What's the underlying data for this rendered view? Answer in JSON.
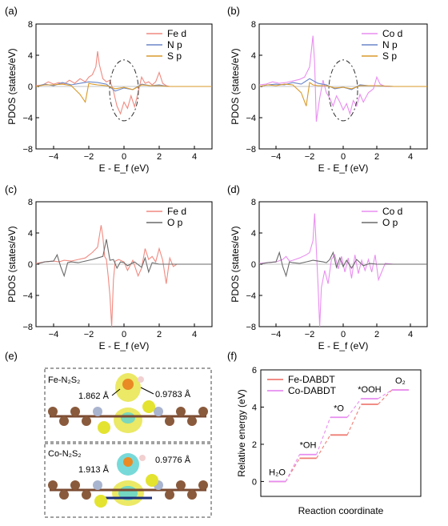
{
  "colors": {
    "fe_d": "#f08a80",
    "co_d": "#e98ef0",
    "n_p": "#6b86c9",
    "s_p": "#d99a2a",
    "o_p": "#6a6a6a",
    "fe_line": "#ef7d74",
    "co_line": "#e78df0"
  },
  "panel_e": {
    "label": "(e)",
    "top_title": "Fe-N₂S₂",
    "top_bond1": "1.862 Å",
    "top_bond2": "0.9783 Å",
    "bottom_title": "Co-N₂S₂",
    "bottom_bond1": "1.913 Å",
    "bottom_bond2": "0.9776 Å"
  },
  "chart_data": [
    {
      "type": "line",
      "panel": "(a)",
      "xlabel": "E - E_f (eV)",
      "ylabel": "PDOS (states/eV)",
      "xlim": [
        -5,
        5
      ],
      "ylim": [
        -8,
        8
      ],
      "xticks": [
        -4,
        -2,
        0,
        2,
        4
      ],
      "yticks": [
        8,
        4,
        0,
        -4,
        -8
      ],
      "legend": "top-right",
      "annotation": "dashed ellipse around E - E_f = 0",
      "series": [
        {
          "name": "Fe d",
          "color": "#f08a80",
          "x": [
            -5,
            -4.6,
            -4.3,
            -4,
            -3.7,
            -3.4,
            -3.1,
            -2.8,
            -2.5,
            -2.2,
            -2,
            -1.8,
            -1.6,
            -1.5,
            -1.4,
            -1.2,
            -1,
            -0.8,
            -0.6,
            -0.4,
            -0.2,
            0,
            0.2,
            0.4,
            0.6,
            0.8,
            1,
            1.2,
            1.4,
            1.6,
            1.8,
            2,
            2.2,
            2.4,
            2.6,
            3,
            3.5,
            4,
            4.5,
            5
          ],
          "y": [
            0.1,
            0.2,
            0.6,
            0.3,
            0.5,
            0.3,
            0.8,
            0.4,
            1.0,
            0.6,
            1.2,
            1.5,
            2.5,
            4.5,
            2.8,
            1.0,
            0.6,
            0.8,
            -0.6,
            -2.5,
            -3.5,
            -2.0,
            -2.8,
            -1.2,
            -2.6,
            -0.8,
            1.2,
            0.4,
            0.6,
            0.2,
            0.6,
            1.8,
            0.4,
            0.1,
            0,
            0,
            0,
            0,
            0,
            0
          ]
        },
        {
          "name": "N p",
          "color": "#6b86c9",
          "x": [
            -5,
            -4.5,
            -4,
            -3.5,
            -3,
            -2.5,
            -2,
            -1.5,
            -1,
            -0.5,
            0,
            0.5,
            1,
            1.5,
            2,
            2.5,
            3,
            4,
            5
          ],
          "y": [
            0,
            0.3,
            0.1,
            0.5,
            0.2,
            0.4,
            0.6,
            0.5,
            0.3,
            -0.6,
            -0.2,
            -0.4,
            0.3,
            0.1,
            0.2,
            0,
            0,
            0,
            0
          ]
        },
        {
          "name": "S p",
          "color": "#d99a2a",
          "x": [
            -5,
            -4.5,
            -4,
            -3.5,
            -3,
            -2.5,
            -2.2,
            -2,
            -1.8,
            -1.5,
            -1,
            -0.5,
            0,
            0.5,
            1,
            1.5,
            2,
            2.5,
            3,
            4,
            5
          ],
          "y": [
            0,
            0.2,
            0.2,
            0.3,
            0.1,
            -1.0,
            -2.0,
            0.4,
            0.3,
            0.2,
            0.1,
            -0.3,
            -0.1,
            -0.4,
            0.2,
            0.1,
            0.1,
            0,
            0,
            0,
            0
          ]
        }
      ]
    },
    {
      "type": "line",
      "panel": "(b)",
      "xlabel": "E - E_f (eV)",
      "ylabel": "PDOS (states/eV)",
      "xlim": [
        -5,
        5
      ],
      "ylim": [
        -8,
        8
      ],
      "xticks": [
        -4,
        -2,
        0,
        2,
        4
      ],
      "yticks": [
        8,
        4,
        0,
        -4,
        -8
      ],
      "legend": "top-right",
      "annotation": "dashed ellipse around E - E_f = 0",
      "series": [
        {
          "name": "Co d",
          "color": "#e98ef0",
          "x": [
            -5,
            -4.6,
            -4.2,
            -3.8,
            -3.4,
            -3,
            -2.6,
            -2.3,
            -2,
            -1.9,
            -1.8,
            -1.7,
            -1.6,
            -1.4,
            -1.2,
            -1,
            -0.8,
            -0.6,
            -0.4,
            -0.2,
            0,
            0.2,
            0.4,
            0.6,
            0.8,
            1,
            1.2,
            1.5,
            1.8,
            2,
            2.2,
            2.5,
            3,
            3.5,
            4,
            4.5,
            5
          ],
          "y": [
            0.2,
            0.3,
            0.6,
            0.4,
            0.5,
            0.7,
            0.9,
            1.2,
            2.5,
            4.5,
            6.5,
            3.0,
            -4.5,
            -1.5,
            0.8,
            -0.8,
            -1.5,
            -2.5,
            -1.2,
            -2.0,
            -3.0,
            -2.2,
            -3.5,
            -1.8,
            -2.5,
            -1.0,
            -2.0,
            -0.8,
            -0.3,
            1.2,
            0.3,
            0,
            0,
            0,
            0,
            0,
            0
          ]
        },
        {
          "name": "N p",
          "color": "#6b86c9",
          "x": [
            -5,
            -4.5,
            -4,
            -3.5,
            -3,
            -2.5,
            -2,
            -1.5,
            -1,
            -0.5,
            0,
            0.5,
            1,
            1.5,
            2,
            3,
            4,
            5
          ],
          "y": [
            0,
            0.2,
            0.3,
            0.2,
            0.5,
            0.3,
            1.0,
            0.4,
            0.2,
            -0.3,
            -0.1,
            -0.4,
            0.2,
            0.1,
            0.1,
            0,
            0,
            0
          ]
        },
        {
          "name": "S p",
          "color": "#d99a2a",
          "x": [
            -5,
            -4.5,
            -4,
            -3.5,
            -3,
            -2.5,
            -2.2,
            -2,
            -1.8,
            -1.5,
            -1,
            -0.5,
            0,
            0.5,
            1,
            1.5,
            2,
            3,
            4,
            5
          ],
          "y": [
            0,
            0.2,
            0.1,
            0.3,
            0.2,
            -0.8,
            -2.5,
            0.5,
            0.2,
            0.1,
            0.1,
            -0.2,
            -0.1,
            -0.3,
            0.1,
            0.1,
            0.1,
            0,
            0,
            0
          ]
        }
      ]
    },
    {
      "type": "line",
      "panel": "(c)",
      "xlabel": "E - E_f (eV)",
      "ylabel": "PDOS (states/eV)",
      "xlim": [
        -5,
        5
      ],
      "ylim": [
        -8,
        8
      ],
      "xticks": [
        -4,
        -2,
        0,
        2,
        4
      ],
      "yticks": [
        8,
        4,
        0,
        -4,
        -8
      ],
      "legend": "top-right",
      "series": [
        {
          "name": "Fe d",
          "color": "#f08a80",
          "x": [
            -5,
            -4.5,
            -4,
            -3.7,
            -3.4,
            -3,
            -2.6,
            -2.2,
            -1.8,
            -1.5,
            -1.3,
            -1.2,
            -1.1,
            -1,
            -0.9,
            -0.8,
            -0.7,
            -0.6,
            -0.5,
            -0.3,
            0,
            0.2,
            0.5,
            0.8,
            1,
            1.2,
            1.4,
            1.6,
            1.8,
            2,
            2.2,
            2.4,
            2.6,
            2.8,
            3,
            3.5,
            4,
            5
          ],
          "y": [
            0.1,
            0.3,
            0.4,
            0.3,
            0.5,
            0.4,
            0.6,
            0.8,
            1.5,
            2.2,
            5.0,
            3.5,
            1.0,
            0.6,
            -1.5,
            -4.0,
            -8.0,
            -2.0,
            0.4,
            0.6,
            0.3,
            -0.8,
            0.5,
            -1.5,
            -0.5,
            2.0,
            0.6,
            1.0,
            0.3,
            2.0,
            0.5,
            -2.5,
            0.8,
            -0.3,
            0,
            0,
            0,
            0
          ]
        },
        {
          "name": "O p",
          "color": "#6a6a6a",
          "x": [
            -5,
            -4.5,
            -4,
            -3.8,
            -3.6,
            -3.4,
            -3.2,
            -3,
            -2.6,
            -2.2,
            -1.8,
            -1.5,
            -1.2,
            -1,
            -0.8,
            -0.6,
            -0.4,
            -0.2,
            0,
            0.2,
            0.6,
            1,
            1.2,
            1.4,
            1.6,
            2,
            2.5,
            3,
            4,
            5
          ],
          "y": [
            0,
            0.3,
            0.4,
            1.2,
            -0.3,
            -1.5,
            0.2,
            0.3,
            0.2,
            0.4,
            0.6,
            0.8,
            1.0,
            3.2,
            0.5,
            0.6,
            -0.5,
            0.3,
            0.2,
            -0.2,
            0.3,
            -0.4,
            0.8,
            -1.0,
            0.2,
            0,
            0,
            0,
            0,
            0
          ]
        }
      ]
    },
    {
      "type": "line",
      "panel": "(d)",
      "xlabel": "E - E_f (eV)",
      "ylabel": "PDOS (states/eV)",
      "xlim": [
        -5,
        5
      ],
      "ylim": [
        -8,
        8
      ],
      "xticks": [
        -4,
        -2,
        0,
        2,
        4
      ],
      "yticks": [
        8,
        4,
        0,
        -4,
        -8
      ],
      "legend": "top-right",
      "series": [
        {
          "name": "Co d",
          "color": "#e98ef0",
          "x": [
            -5,
            -4.5,
            -4,
            -3.6,
            -3.4,
            -3.2,
            -3,
            -2.6,
            -2.2,
            -2,
            -1.8,
            -1.7,
            -1.6,
            -1.5,
            -1.4,
            -1.3,
            -1.1,
            -0.9,
            -0.7,
            -0.5,
            -0.3,
            -0.1,
            0.1,
            0.3,
            0.5,
            0.7,
            0.9,
            1.1,
            1.3,
            1.5,
            1.7,
            1.9,
            2.1,
            2.5,
            3,
            4,
            5
          ],
          "y": [
            0.1,
            0.2,
            0.3,
            0.6,
            1.0,
            0.4,
            0.5,
            0.8,
            1.2,
            1.5,
            3.0,
            6.5,
            2.0,
            -2.5,
            -8.0,
            -3.0,
            -0.8,
            -2.5,
            0.6,
            1.2,
            -0.6,
            1.0,
            -1.0,
            0.8,
            -1.8,
            1.2,
            -1.2,
            0.5,
            -0.8,
            0.6,
            -1.0,
            1.2,
            -2.0,
            0.1,
            0,
            0,
            0
          ]
        },
        {
          "name": "O p",
          "color": "#6a6a6a",
          "x": [
            -5,
            -4.5,
            -4,
            -3.8,
            -3.6,
            -3.4,
            -3.2,
            -3,
            -2.6,
            -2.2,
            -1.8,
            -1.5,
            -1.2,
            -1,
            -0.8,
            -0.6,
            -0.4,
            -0.2,
            0,
            0.2,
            0.5,
            0.8,
            1.2,
            1.6,
            2,
            3,
            4,
            5
          ],
          "y": [
            0,
            0.2,
            0.3,
            1.5,
            -0.3,
            -1.5,
            0.3,
            0.2,
            0.1,
            0.3,
            0.5,
            0.4,
            0.3,
            0.2,
            0.6,
            1.5,
            -0.4,
            0.8,
            -0.3,
            0.5,
            -0.5,
            0.6,
            -0.2,
            0.1,
            0,
            0,
            0,
            0
          ]
        }
      ]
    },
    {
      "type": "line",
      "panel": "(f)",
      "xlabel": "Reaction coordinate",
      "ylabel": "Relative energy (eV)",
      "ylim": [
        -0.8,
        6.0
      ],
      "yticks": [
        0,
        2,
        4,
        6
      ],
      "legend": "top-left",
      "steps": [
        "H₂O",
        "*OH",
        "*O",
        "*OOH",
        "O₂"
      ],
      "series": [
        {
          "name": "Fe-DABDT",
          "color": "#ef7d74",
          "values": [
            0,
            1.25,
            2.5,
            4.15,
            4.92
          ]
        },
        {
          "name": "Co-DABDT",
          "color": "#e78df0",
          "values": [
            0,
            1.45,
            3.45,
            4.45,
            4.92
          ]
        }
      ]
    }
  ]
}
